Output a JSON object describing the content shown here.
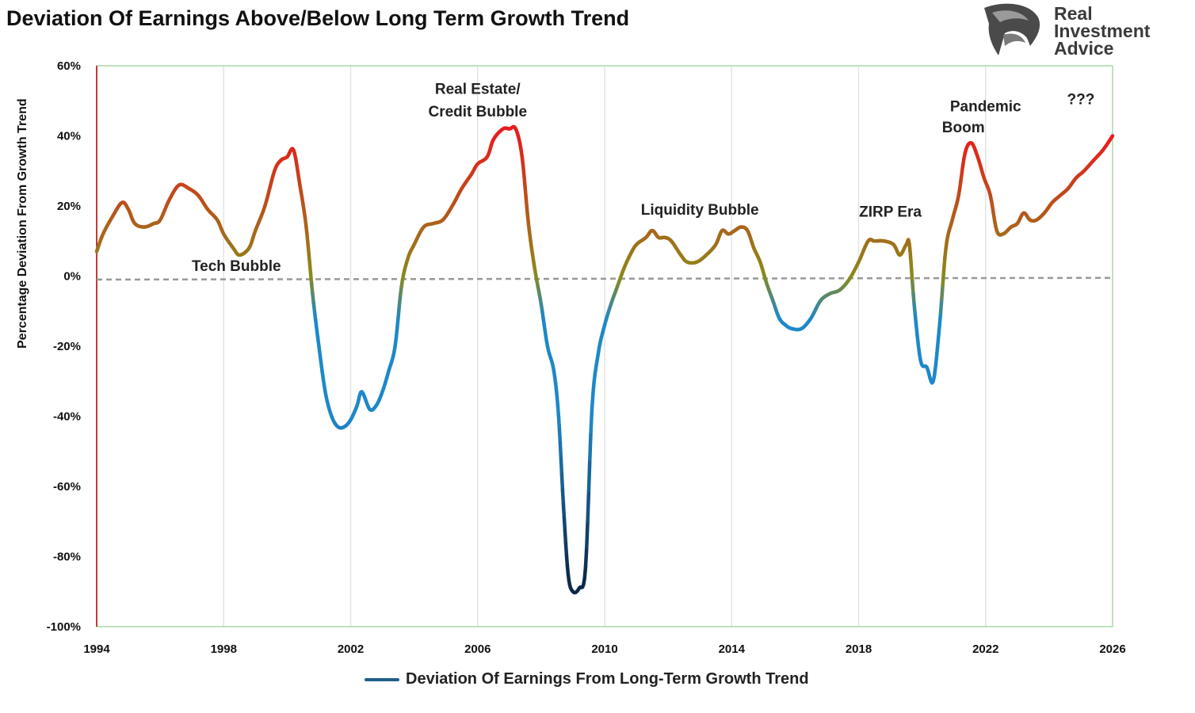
{
  "title": "Deviation Of Earnings Above/Below Long Term Growth Trend",
  "logo": {
    "lines": [
      "Real",
      "Investment",
      "Advice"
    ],
    "icon": "eagle-head-icon"
  },
  "colors": {
    "high": "#e81c1c",
    "neutral": "#8a8a1a",
    "low": "#1e88c8",
    "deep": "#0d2a4a",
    "zero_line": "#999999",
    "grid": "#e3e3e3",
    "frame": "#a8d8a8",
    "left_axis": "#c00000"
  },
  "chart_data": {
    "type": "line",
    "title": "Deviation Of Earnings Above/Below Long Term Growth Trend",
    "xlabel": "",
    "ylabel": "Percentage Deviation From Growth Trend",
    "xlim": [
      1994,
      2026
    ],
    "ylim": [
      -100,
      60
    ],
    "x_ticks": [
      "1994",
      "1998",
      "2002",
      "2006",
      "2010",
      "2014",
      "2018",
      "2022",
      "2026"
    ],
    "y_ticks": [
      "60%",
      "40%",
      "20%",
      "0%",
      "-20%",
      "-40%",
      "-60%",
      "-80%",
      "-100%"
    ],
    "grid": "vertical",
    "legend_position": "bottom",
    "series": [
      {
        "name": "Deviation Of Earnings From Long-Term Growth Trend",
        "points": [
          [
            1994.0,
            7
          ],
          [
            1994.2,
            12
          ],
          [
            1994.5,
            17
          ],
          [
            1994.8,
            21
          ],
          [
            1995.0,
            19
          ],
          [
            1995.2,
            15
          ],
          [
            1995.5,
            14
          ],
          [
            1995.8,
            15
          ],
          [
            1996.0,
            16
          ],
          [
            1996.3,
            22
          ],
          [
            1996.6,
            26
          ],
          [
            1996.9,
            25
          ],
          [
            1997.2,
            23
          ],
          [
            1997.5,
            19
          ],
          [
            1997.8,
            16
          ],
          [
            1998.0,
            12
          ],
          [
            1998.3,
            8
          ],
          [
            1998.5,
            6
          ],
          [
            1998.8,
            8
          ],
          [
            1999.0,
            13
          ],
          [
            1999.3,
            20
          ],
          [
            1999.6,
            30
          ],
          [
            1999.8,
            33
          ],
          [
            2000.0,
            34
          ],
          [
            2000.2,
            36
          ],
          [
            2000.4,
            26
          ],
          [
            2000.6,
            14
          ],
          [
            2000.8,
            -5
          ],
          [
            2001.0,
            -20
          ],
          [
            2001.2,
            -33
          ],
          [
            2001.4,
            -40
          ],
          [
            2001.6,
            -43
          ],
          [
            2001.8,
            -43
          ],
          [
            2002.0,
            -41
          ],
          [
            2002.2,
            -37
          ],
          [
            2002.35,
            -33
          ],
          [
            2002.6,
            -38
          ],
          [
            2002.8,
            -37
          ],
          [
            2003.0,
            -33
          ],
          [
            2003.2,
            -27
          ],
          [
            2003.4,
            -20
          ],
          [
            2003.6,
            -3
          ],
          [
            2003.8,
            5
          ],
          [
            2004.0,
            9
          ],
          [
            2004.3,
            14
          ],
          [
            2004.6,
            15
          ],
          [
            2004.9,
            16
          ],
          [
            2005.2,
            20
          ],
          [
            2005.5,
            25
          ],
          [
            2005.8,
            29
          ],
          [
            2006.0,
            32
          ],
          [
            2006.3,
            34
          ],
          [
            2006.5,
            39
          ],
          [
            2006.8,
            42
          ],
          [
            2007.0,
            42
          ],
          [
            2007.2,
            42
          ],
          [
            2007.4,
            34
          ],
          [
            2007.6,
            15
          ],
          [
            2007.8,
            2
          ],
          [
            2008.0,
            -8
          ],
          [
            2008.2,
            -20
          ],
          [
            2008.4,
            -27
          ],
          [
            2008.55,
            -40
          ],
          [
            2008.7,
            -65
          ],
          [
            2008.85,
            -85
          ],
          [
            2009.0,
            -90
          ],
          [
            2009.2,
            -89
          ],
          [
            2009.4,
            -83
          ],
          [
            2009.6,
            -38
          ],
          [
            2009.8,
            -22
          ],
          [
            2010.0,
            -14
          ],
          [
            2010.2,
            -8
          ],
          [
            2010.4,
            -3
          ],
          [
            2010.6,
            2
          ],
          [
            2010.8,
            6
          ],
          [
            2011.0,
            9
          ],
          [
            2011.3,
            11
          ],
          [
            2011.5,
            13
          ],
          [
            2011.7,
            11
          ],
          [
            2011.9,
            11
          ],
          [
            2012.1,
            10
          ],
          [
            2012.4,
            6
          ],
          [
            2012.6,
            4
          ],
          [
            2012.9,
            4
          ],
          [
            2013.2,
            6
          ],
          [
            2013.5,
            9
          ],
          [
            2013.7,
            13
          ],
          [
            2013.9,
            12
          ],
          [
            2014.1,
            13
          ],
          [
            2014.3,
            14
          ],
          [
            2014.5,
            13
          ],
          [
            2014.7,
            8
          ],
          [
            2014.9,
            4
          ],
          [
            2015.1,
            -2
          ],
          [
            2015.3,
            -7
          ],
          [
            2015.5,
            -12
          ],
          [
            2015.7,
            -14
          ],
          [
            2015.9,
            -15
          ],
          [
            2016.2,
            -15
          ],
          [
            2016.5,
            -12
          ],
          [
            2016.8,
            -7
          ],
          [
            2017.1,
            -5
          ],
          [
            2017.4,
            -4
          ],
          [
            2017.7,
            -1
          ],
          [
            2018.0,
            4
          ],
          [
            2018.3,
            10
          ],
          [
            2018.5,
            10
          ],
          [
            2018.8,
            10
          ],
          [
            2019.1,
            9
          ],
          [
            2019.3,
            6
          ],
          [
            2019.5,
            9
          ],
          [
            2019.6,
            9
          ],
          [
            2019.75,
            -8
          ],
          [
            2019.95,
            -24
          ],
          [
            2020.15,
            -26
          ],
          [
            2020.35,
            -30
          ],
          [
            2020.55,
            -14
          ],
          [
            2020.75,
            8
          ],
          [
            2020.95,
            16
          ],
          [
            2021.15,
            23
          ],
          [
            2021.35,
            35
          ],
          [
            2021.55,
            38
          ],
          [
            2021.75,
            34
          ],
          [
            2021.95,
            28
          ],
          [
            2022.15,
            23
          ],
          [
            2022.35,
            13
          ],
          [
            2022.55,
            12
          ],
          [
            2022.8,
            14
          ],
          [
            2023.0,
            15
          ],
          [
            2023.2,
            18
          ],
          [
            2023.4,
            16
          ],
          [
            2023.6,
            16
          ],
          [
            2023.85,
            18
          ],
          [
            2024.1,
            21
          ],
          [
            2024.35,
            23
          ],
          [
            2024.6,
            25
          ],
          [
            2024.85,
            28
          ],
          [
            2025.1,
            30
          ],
          [
            2025.4,
            33
          ],
          [
            2025.7,
            36
          ],
          [
            2026.0,
            40
          ]
        ]
      },
      {
        "name": "",
        "style": "dashed",
        "points": [
          [
            1994.0,
            -1
          ],
          [
            2026.0,
            -0.5
          ]
        ]
      }
    ],
    "annotations": [
      {
        "text": "Tech Bubble",
        "x": 1998.4,
        "y": 1.5
      },
      {
        "text": "Real Estate/",
        "x": 2006.0,
        "y": 52
      },
      {
        "text": "Credit Bubble",
        "x": 2006.0,
        "y": 45.5
      },
      {
        "text": "Liquidity Bubble",
        "x": 2013.0,
        "y": 17.5
      },
      {
        "text": "ZIRP Era",
        "x": 2019.0,
        "y": 17
      },
      {
        "text": "Pandemic",
        "x": 2022.0,
        "y": 47
      },
      {
        "text": "Boom",
        "x": 2021.3,
        "y": 41
      },
      {
        "text": "???",
        "x": 2025.0,
        "y": 49,
        "color": "#2e6b2e"
      }
    ]
  }
}
